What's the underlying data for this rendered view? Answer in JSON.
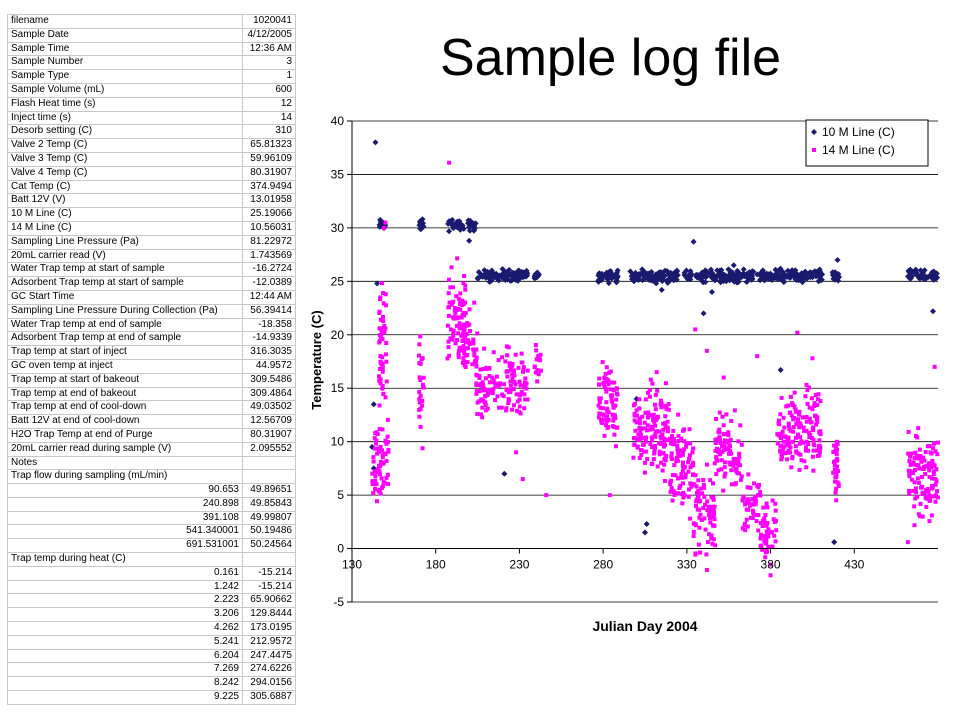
{
  "title": "Sample log file",
  "table": {
    "rows": [
      {
        "label": "filename",
        "value": "1020041"
      },
      {
        "label": "Sample Date",
        "value": "4/12/2005"
      },
      {
        "label": "Sample Time",
        "value": "12:36 AM"
      },
      {
        "label": "Sample Number",
        "value": "3"
      },
      {
        "label": "Sample Type",
        "value": "1"
      },
      {
        "label": "Sample Volume (mL)",
        "value": "600"
      },
      {
        "label": "Flash Heat time (s)",
        "value": "12"
      },
      {
        "label": "Inject time (s)",
        "value": "14"
      },
      {
        "label": "Desorb setting (C)",
        "value": "310"
      },
      {
        "label": "Valve 2 Temp (C)",
        "value": "65.81323"
      },
      {
        "label": "Valve 3 Temp (C)",
        "value": "59.96109"
      },
      {
        "label": "Valve 4 Temp (C)",
        "value": "80.31907"
      },
      {
        "label": "Cat Temp (C)",
        "value": "374.9494"
      },
      {
        "label": "Batt 12V (V)",
        "value": "13.01958"
      },
      {
        "label": "10 M Line (C)",
        "value": "25.19066"
      },
      {
        "label": "14 M Line (C)",
        "value": "10.56031"
      },
      {
        "label": "Sampling Line Pressure (Pa)",
        "value": "81.22972"
      },
      {
        "label": "20mL carrier read (V)",
        "value": "1.743569"
      },
      {
        "label": "Water Trap temp at start of sample",
        "value": "-16.2724"
      },
      {
        "label": "Adsorbent Trap temp at start of sample",
        "value": "-12.0389"
      },
      {
        "label": "GC Start Time",
        "value": "12:44 AM"
      },
      {
        "label": "Sampling Line Pressure During Collection (Pa)",
        "value": "56.39414"
      },
      {
        "label": "Water Trap temp at end of sample",
        "value": "-18.358"
      },
      {
        "label": "Adsorbent Trap temp at end of sample",
        "value": "-14.9339"
      },
      {
        "label": "Trap temp at start of inject",
        "value": "316.3035"
      },
      {
        "label": "GC oven temp at inject",
        "value": "44.9572"
      },
      {
        "label": "Trap temp at start of bakeout",
        "value": "309.5486"
      },
      {
        "label": "Trap temp at end of bakeout",
        "value": "309.4864"
      },
      {
        "label": "Trap temp at end of cool-down",
        "value": "49.03502"
      },
      {
        "label": "Batt 12V at end of cool-down",
        "value": "12.56709"
      },
      {
        "label": "H2O Trap Temp at end of Purge",
        "value": "80.31907"
      },
      {
        "label": "20mL carrier read during sample (V)",
        "value": "2.095552"
      },
      {
        "label": "Notes",
        "value": ""
      },
      {
        "label": "Trap flow during sampling (mL/min)",
        "value": ""
      }
    ],
    "flow_rows": [
      [
        "90.653",
        "49.89651"
      ],
      [
        "240.898",
        "49.85843"
      ],
      [
        "391.108",
        "49.99807"
      ],
      [
        "541.340001",
        "50.19486"
      ],
      [
        "691.531001",
        "50.24564"
      ]
    ],
    "heat_header": "Trap temp during heat (C)",
    "heat_rows": [
      [
        "0.161",
        "-15.214"
      ],
      [
        "1.242",
        "-15.214"
      ],
      [
        "2.223",
        "65.90662"
      ],
      [
        "3.206",
        "129.8444"
      ],
      [
        "4.262",
        "173.0195"
      ],
      [
        "5.241",
        "212.9572"
      ],
      [
        "6.204",
        "247.4475"
      ],
      [
        "7.269",
        "274.6226"
      ],
      [
        "8.242",
        "294.0156"
      ],
      [
        "9.225",
        "305.6887"
      ]
    ]
  },
  "chart_data": {
    "type": "scatter",
    "xlabel": "Julian Day 2004",
    "ylabel": "Temperature (C)",
    "xlim": [
      130,
      480
    ],
    "ylim": [
      -5,
      40
    ],
    "xticks": [
      130,
      180,
      230,
      280,
      330,
      380,
      430
    ],
    "yticks": [
      -5,
      0,
      5,
      10,
      15,
      20,
      25,
      30,
      35,
      40
    ],
    "grid": "horizontal",
    "legend": "top-right",
    "series": [
      {
        "name": "10 M Line (C)",
        "color": "#1a1a6e",
        "marker": "diamond",
        "clusters": [
          {
            "x": [
              146,
              150
            ],
            "y": [
              29.5,
              31
            ]
          },
          {
            "x": [
              170,
              173
            ],
            "y": [
              29.5,
              31
            ]
          },
          {
            "x": [
              187,
              197
            ],
            "y": [
              29.5,
              31
            ]
          },
          {
            "x": [
              199,
              204
            ],
            "y": [
              29.5,
              31
            ]
          },
          {
            "x": [
              205,
              235
            ],
            "y": [
              24.8,
              26.3
            ]
          },
          {
            "x": [
              239,
              242
            ],
            "y": [
              24.8,
              26.3
            ]
          },
          {
            "x": [
              277,
              289
            ],
            "y": [
              24.7,
              26.3
            ]
          },
          {
            "x": [
              296,
              325
            ],
            "y": [
              24.7,
              26.3
            ]
          },
          {
            "x": [
              328,
              333
            ],
            "y": [
              24.7,
              26.3
            ]
          },
          {
            "x": [
              335,
              370
            ],
            "y": [
              24.7,
              26.3
            ]
          },
          {
            "x": [
              372,
              402
            ],
            "y": [
              24.7,
              26.3
            ]
          },
          {
            "x": [
              403,
              411
            ],
            "y": [
              24.7,
              26.3
            ]
          },
          {
            "x": [
              417,
              421
            ],
            "y": [
              24.7,
              26.3
            ]
          },
          {
            "x": [
              462,
              480
            ],
            "y": [
              24.7,
              26.3
            ]
          }
        ],
        "points": [
          [
            144,
            38
          ],
          [
            143,
            13.5
          ],
          [
            142,
            9.5
          ],
          [
            143,
            7.5
          ],
          [
            145,
            24.8
          ],
          [
            305,
            1.5
          ],
          [
            306,
            2.3
          ],
          [
            315,
            24.2
          ],
          [
            334,
            28.7
          ],
          [
            340,
            22
          ],
          [
            345,
            24
          ],
          [
            358,
            26.5
          ],
          [
            386,
            16.7
          ],
          [
            420,
            27
          ],
          [
            418,
            0.6
          ],
          [
            477,
            22.2
          ],
          [
            200,
            28.8
          ],
          [
            221,
            7
          ],
          [
            395,
            25.2
          ],
          [
            300,
            14
          ]
        ]
      },
      {
        "name": "14 M Line (C)",
        "color": "#ff00ff",
        "marker": "square",
        "clusters": [
          {
            "x": [
              142,
              152
            ],
            "y": [
              2,
              14
            ]
          },
          {
            "x": [
              146,
              151
            ],
            "y": [
              10,
              28
            ]
          },
          {
            "x": [
              170,
              173
            ],
            "y": [
              7,
              22
            ]
          },
          {
            "x": [
              187,
              198
            ],
            "y": [
              15,
              28
            ]
          },
          {
            "x": [
              195,
              205
            ],
            "y": [
              15,
              23
            ]
          },
          {
            "x": [
              204,
              235
            ],
            "y": [
              11,
              20
            ]
          },
          {
            "x": [
              239,
              243
            ],
            "y": [
              14,
              21
            ]
          },
          {
            "x": [
              277,
              289
            ],
            "y": [
              8,
              19
            ]
          },
          {
            "x": [
              298,
              320
            ],
            "y": [
              5,
              17
            ]
          },
          {
            "x": [
              320,
              334
            ],
            "y": [
              2,
              14
            ]
          },
          {
            "x": [
              334,
              347
            ],
            "y": [
              -2,
              9
            ]
          },
          {
            "x": [
              347,
              363
            ],
            "y": [
              4,
              14
            ]
          },
          {
            "x": [
              363,
              374
            ],
            "y": [
              0,
              8
            ]
          },
          {
            "x": [
              374,
              384
            ],
            "y": [
              -2,
              6
            ]
          },
          {
            "x": [
              384,
              400
            ],
            "y": [
              6,
              16
            ]
          },
          {
            "x": [
              400,
              410
            ],
            "y": [
              6,
              17
            ]
          },
          {
            "x": [
              417,
              421
            ],
            "y": [
              1,
              14
            ]
          },
          {
            "x": [
              462,
              480
            ],
            "y": [
              1,
              12
            ]
          }
        ],
        "points": [
          [
            188,
            36.1
          ],
          [
            149,
            30
          ],
          [
            203,
            23
          ],
          [
            228,
            9
          ],
          [
            284,
            5
          ],
          [
            312,
            16.5
          ],
          [
            335,
            20.5
          ],
          [
            342,
            18.5
          ],
          [
            352,
            16
          ],
          [
            372,
            18
          ],
          [
            396,
            20.2
          ],
          [
            405,
            17.8
          ],
          [
            478,
            17
          ],
          [
            462,
            0.6
          ],
          [
            380,
            -2.5
          ],
          [
            342,
            -2
          ],
          [
            150,
            30.5
          ],
          [
            197,
            25.5
          ],
          [
            232,
            6.5
          ],
          [
            246,
            5
          ]
        ]
      }
    ]
  }
}
